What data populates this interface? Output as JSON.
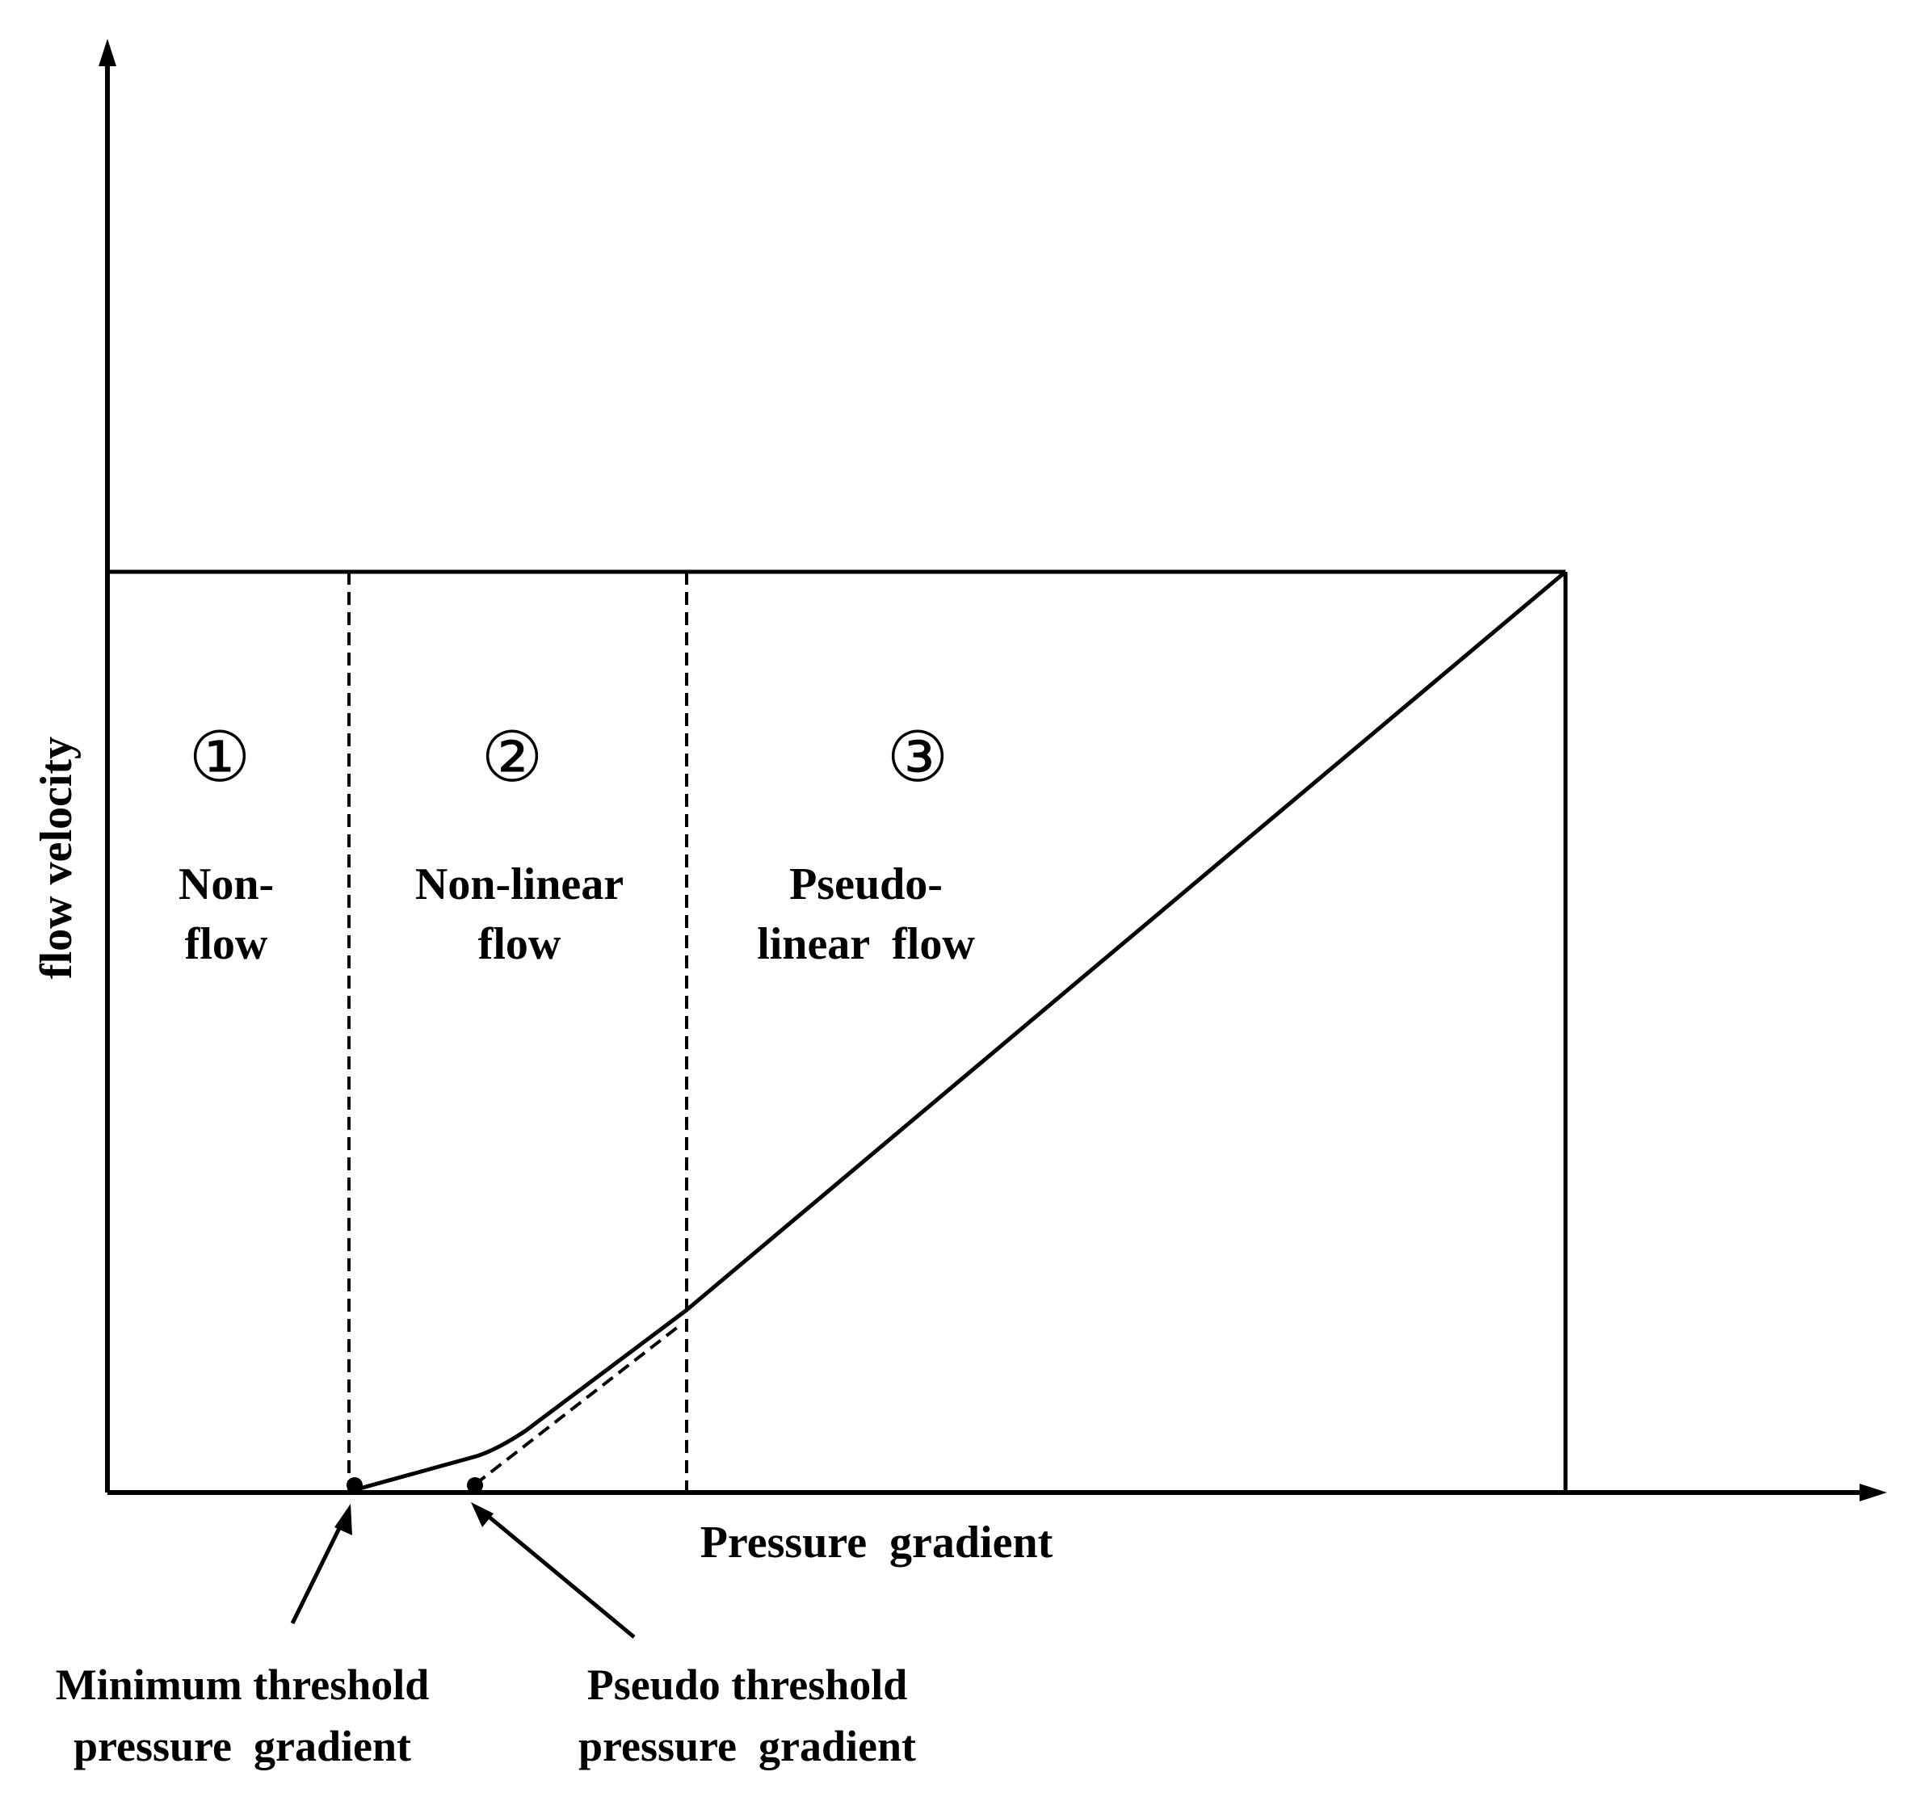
{
  "axes": {
    "x_label": "Pressure  gradient",
    "y_label": "flow velocity"
  },
  "regions": [
    {
      "marker": "①",
      "label_lines": [
        "Non-",
        "flow"
      ]
    },
    {
      "marker": "②",
      "label_lines": [
        "Non-linear",
        "flow"
      ]
    },
    {
      "marker": "③",
      "label_lines": [
        "Pseudo-",
        "linear  flow"
      ]
    }
  ],
  "annotations": {
    "minimum_threshold": [
      "Minimum threshold",
      "pressure  gradient"
    ],
    "pseudo_threshold": [
      "Pseudo threshold",
      "pressure  gradient"
    ]
  },
  "colors": {
    "ink": "#000000",
    "background": "#ffffff"
  }
}
